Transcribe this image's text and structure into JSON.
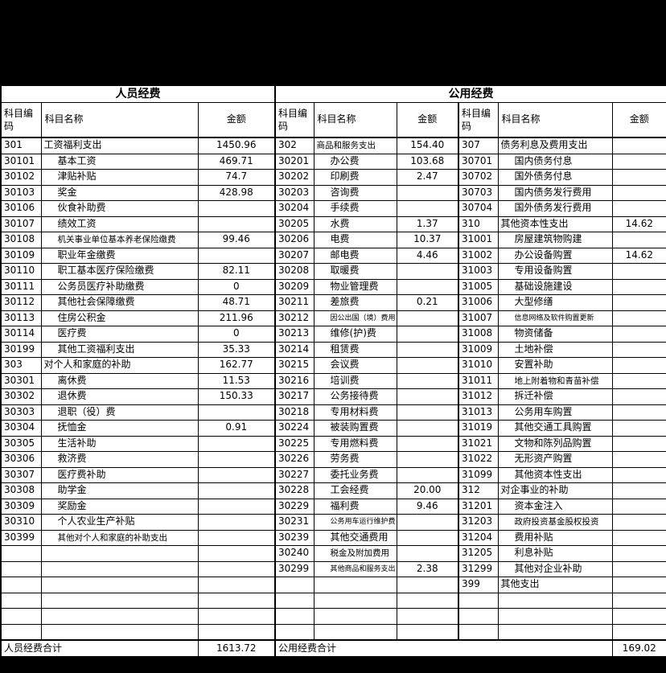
{
  "colors": {
    "page_bg": "#000000",
    "sheet_bg": "#ffffff",
    "grid": "#000000",
    "text": "#000000"
  },
  "sections": {
    "personnel_title": "人员经费",
    "public_title": "公用经费"
  },
  "headers": {
    "code": "科目编码",
    "name": "科目名称",
    "amount": "金额"
  },
  "rows": [
    {
      "l": {
        "c": "301",
        "n": "工资福利支出",
        "a": "1450.96",
        "t": 1
      },
      "m": {
        "c": "302",
        "n": "商品和服务支出",
        "a": "154.40",
        "t": 1,
        "z": "m"
      },
      "r": {
        "c": "307",
        "n": "债务利息及费用支出",
        "a": "",
        "t": 1
      }
    },
    {
      "l": {
        "c": "30101",
        "n": "基本工资",
        "a": "469.71"
      },
      "m": {
        "c": "30201",
        "n": "办公费",
        "a": "103.68"
      },
      "r": {
        "c": "30701",
        "n": "国内债务付息",
        "a": ""
      }
    },
    {
      "l": {
        "c": "30102",
        "n": "津贴补贴",
        "a": "74.7"
      },
      "m": {
        "c": "30202",
        "n": "印刷费",
        "a": "2.47"
      },
      "r": {
        "c": "30702",
        "n": "国外债务付息",
        "a": ""
      }
    },
    {
      "l": {
        "c": "30103",
        "n": "奖金",
        "a": "428.98"
      },
      "m": {
        "c": "30203",
        "n": "咨询费",
        "a": ""
      },
      "r": {
        "c": "30703",
        "n": "国内债务发行费用",
        "a": ""
      }
    },
    {
      "l": {
        "c": "30106",
        "n": "伙食补助费",
        "a": ""
      },
      "m": {
        "c": "30204",
        "n": "手续费",
        "a": ""
      },
      "r": {
        "c": "30704",
        "n": "国外债务发行费用",
        "a": ""
      }
    },
    {
      "l": {
        "c": "30107",
        "n": "绩效工资",
        "a": ""
      },
      "m": {
        "c": "30205",
        "n": "水费",
        "a": "1.37"
      },
      "r": {
        "c": "310",
        "n": "其他资本性支出",
        "a": "14.62",
        "t": 1
      }
    },
    {
      "l": {
        "c": "30108",
        "n": "机关事业单位基本养老保险缴费",
        "a": "99.46",
        "z": "m"
      },
      "m": {
        "c": "30206",
        "n": "电费",
        "a": "10.37"
      },
      "r": {
        "c": "31001",
        "n": "房屋建筑物购建",
        "a": ""
      }
    },
    {
      "l": {
        "c": "30109",
        "n": "职业年金缴费",
        "a": ""
      },
      "m": {
        "c": "30207",
        "n": "邮电费",
        "a": "4.46"
      },
      "r": {
        "c": "31002",
        "n": "办公设备购置",
        "a": "14.62"
      }
    },
    {
      "l": {
        "c": "30110",
        "n": "职工基本医疗保险缴费",
        "a": "82.11"
      },
      "m": {
        "c": "30208",
        "n": "取暖费",
        "a": ""
      },
      "r": {
        "c": "31003",
        "n": "专用设备购置",
        "a": ""
      }
    },
    {
      "l": {
        "c": "30111",
        "n": "公务员医疗补助缴费",
        "a": "0"
      },
      "m": {
        "c": "30209",
        "n": "物业管理费",
        "a": ""
      },
      "r": {
        "c": "31005",
        "n": "基础设施建设",
        "a": ""
      }
    },
    {
      "l": {
        "c": "30112",
        "n": "其他社会保障缴费",
        "a": "48.71"
      },
      "m": {
        "c": "30211",
        "n": "差旅费",
        "a": "0.21"
      },
      "r": {
        "c": "31006",
        "n": "大型修缮",
        "a": ""
      }
    },
    {
      "l": {
        "c": "30113",
        "n": "住房公积金",
        "a": "211.96"
      },
      "m": {
        "c": "30212",
        "n": "因公出国（境）费用",
        "a": "",
        "z": "s"
      },
      "r": {
        "c": "31007",
        "n": "信息网络及软件购置更新",
        "a": "",
        "z": "s"
      }
    },
    {
      "l": {
        "c": "30114",
        "n": "医疗费",
        "a": "0"
      },
      "m": {
        "c": "30213",
        "n": "维修(护)费",
        "a": ""
      },
      "r": {
        "c": "31008",
        "n": "物资储备",
        "a": ""
      }
    },
    {
      "l": {
        "c": "30199",
        "n": "其他工资福利支出",
        "a": "35.33"
      },
      "m": {
        "c": "30214",
        "n": "租赁费",
        "a": ""
      },
      "r": {
        "c": "31009",
        "n": "土地补偿",
        "a": ""
      }
    },
    {
      "l": {
        "c": "303",
        "n": "对个人和家庭的补助",
        "a": "162.77",
        "t": 1
      },
      "m": {
        "c": "30215",
        "n": "会议费",
        "a": ""
      },
      "r": {
        "c": "31010",
        "n": "安置补助",
        "a": ""
      }
    },
    {
      "l": {
        "c": "30301",
        "n": "离休费",
        "a": "11.53"
      },
      "m": {
        "c": "30216",
        "n": "培训费",
        "a": ""
      },
      "r": {
        "c": "31011",
        "n": "地上附着物和青苗补偿",
        "a": "",
        "z": "m"
      }
    },
    {
      "l": {
        "c": "30302",
        "n": "退休费",
        "a": "150.33"
      },
      "m": {
        "c": "30217",
        "n": "公务接待费",
        "a": ""
      },
      "r": {
        "c": "31012",
        "n": "拆迁补偿",
        "a": ""
      }
    },
    {
      "l": {
        "c": "30303",
        "n": "退职（役）费",
        "a": ""
      },
      "m": {
        "c": "30218",
        "n": "专用材料费",
        "a": ""
      },
      "r": {
        "c": "31013",
        "n": "公务用车购置",
        "a": ""
      }
    },
    {
      "l": {
        "c": "30304",
        "n": "抚恤金",
        "a": "0.91"
      },
      "m": {
        "c": "30224",
        "n": "被装购置费",
        "a": ""
      },
      "r": {
        "c": "31019",
        "n": "其他交通工具购置",
        "a": ""
      }
    },
    {
      "l": {
        "c": "30305",
        "n": "生活补助",
        "a": ""
      },
      "m": {
        "c": "30225",
        "n": "专用燃料费",
        "a": ""
      },
      "r": {
        "c": "31021",
        "n": "文物和陈列品购置",
        "a": ""
      }
    },
    {
      "l": {
        "c": "30306",
        "n": "救济费",
        "a": ""
      },
      "m": {
        "c": "30226",
        "n": "劳务费",
        "a": ""
      },
      "r": {
        "c": "31022",
        "n": "无形资产购置",
        "a": ""
      }
    },
    {
      "l": {
        "c": "30307",
        "n": "医疗费补助",
        "a": ""
      },
      "m": {
        "c": "30227",
        "n": "委托业务费",
        "a": ""
      },
      "r": {
        "c": "31099",
        "n": "其他资本性支出",
        "a": ""
      }
    },
    {
      "l": {
        "c": "30308",
        "n": "助学金",
        "a": ""
      },
      "m": {
        "c": "30228",
        "n": "工会经费",
        "a": "20.00"
      },
      "r": {
        "c": "312",
        "n": "对企事业的补助",
        "a": "",
        "t": 1
      }
    },
    {
      "l": {
        "c": "30309",
        "n": "奖励金",
        "a": ""
      },
      "m": {
        "c": "30229",
        "n": "福利费",
        "a": "9.46"
      },
      "r": {
        "c": "31201",
        "n": "资本金注入",
        "a": ""
      }
    },
    {
      "l": {
        "c": "30310",
        "n": "个人农业生产补贴",
        "a": ""
      },
      "m": {
        "c": "30231",
        "n": "公务用车运行维护费",
        "a": "",
        "z": "s"
      },
      "r": {
        "c": "31203",
        "n": "政府投资基金股权投资",
        "a": "",
        "z": "m"
      }
    },
    {
      "l": {
        "c": "30399",
        "n": "其他对个人和家庭的补助支出",
        "a": "",
        "z": "m"
      },
      "m": {
        "c": "30239",
        "n": "其他交通费用",
        "a": ""
      },
      "r": {
        "c": "31204",
        "n": "费用补贴",
        "a": ""
      }
    },
    {
      "l": {},
      "m": {
        "c": "30240",
        "n": "税金及附加费用",
        "a": "",
        "z": "m"
      },
      "r": {
        "c": "31205",
        "n": "利息补贴",
        "a": ""
      }
    },
    {
      "l": {},
      "m": {
        "c": "30299",
        "n": "其他商品和服务支出",
        "a": "2.38",
        "z": "s"
      },
      "r": {
        "c": "31299",
        "n": "其他对企业补助",
        "a": ""
      }
    },
    {
      "l": {},
      "m": {},
      "r": {
        "c": "399",
        "n": "其他支出",
        "a": "",
        "t": 1
      }
    },
    {
      "l": {},
      "m": {},
      "r": {}
    },
    {
      "l": {},
      "m": {},
      "r": {}
    },
    {
      "l": {},
      "m": {},
      "r": {}
    }
  ],
  "footer": {
    "personnel_total_label": "人员经费合计",
    "personnel_total": "1613.72",
    "public_total_label": "公用经费合计",
    "public_total": "169.02"
  }
}
